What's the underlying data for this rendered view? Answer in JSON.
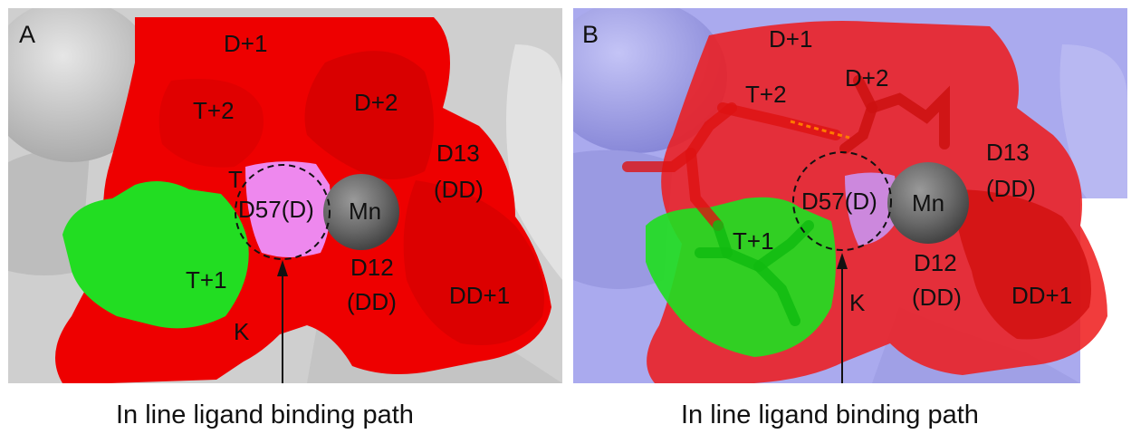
{
  "panels": [
    {
      "letter": "A",
      "labels": {
        "d_plus_1": "D+1",
        "t_plus_2": "T+2",
        "d_plus_2": "D+2",
        "d13": "D13",
        "d13_sub": "(DD)",
        "t_small": "T",
        "d57": "D57(D)",
        "mn": "Mn",
        "t_plus_1": "T+1",
        "d12": "D12",
        "d12_sub": "(DD)",
        "dd_plus_1": "DD+1",
        "k": "K"
      },
      "caption": "In line ligand binding path",
      "colors": {
        "background_surface": "#c8c8c8",
        "red_region": "#ee0000",
        "green_region": "#22dd22",
        "pink_region": "#ee88ee",
        "metal": "#6f6f6f"
      }
    },
    {
      "letter": "B",
      "labels": {
        "d_plus_1": "D+1",
        "t_plus_2": "T+2",
        "d_plus_2": "D+2",
        "d13": "D13",
        "d13_sub": "(DD)",
        "d57": "D57(D)",
        "mn": "Mn",
        "t_plus_1": "T+1",
        "d12": "D12",
        "d12_sub": "(DD)",
        "dd_plus_1": "DD+1",
        "k": "K"
      },
      "caption": "In line ligand binding path",
      "colors": {
        "background_surface": "#a8a8ee",
        "red_region": "#ee1a1a",
        "green_region": "#22dd22",
        "pink_region": "#cc88dd",
        "metal": "#6f6f6f"
      }
    }
  ]
}
